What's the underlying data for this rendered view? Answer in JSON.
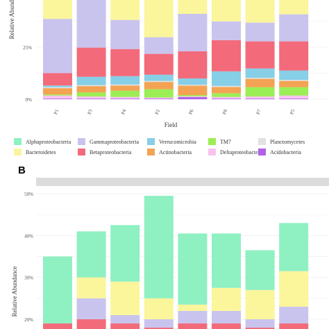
{
  "colors": {
    "Alphaproteobacteria": "#8ff0c2",
    "Gammaproteobacteria": "#c9c4ee",
    "Verrucomicrobia": "#87cfe6",
    "TM7": "#9bee55",
    "Planctomycetes": "#e2e2e2",
    "Bacteroidetes": "#fbf59c",
    "Betaproteobacteria": "#f36a7a",
    "Actinobacteria": "#f3a353",
    "Deltaproteobacteria": "#f8c2ef",
    "Acidobacteria": "#b060ea"
  },
  "chart_data": [
    {
      "type": "bar",
      "stacked": true,
      "ylabel": "Relative Abundance",
      "xlabel": "Field",
      "y_ticks": [
        "0%",
        "25%"
      ],
      "ylim_visible_percent": [
        0,
        52
      ],
      "categories": [
        "P1",
        "P3",
        "P4",
        "P2",
        "P6",
        "P8",
        "P7",
        "P5"
      ],
      "series": [
        {
          "name": "Acidobacteria",
          "values": [
            0.3,
            0.3,
            0.3,
            0.3,
            1.0,
            0.3,
            0.3,
            0.3
          ]
        },
        {
          "name": "Deltaproteobacteria",
          "values": [
            1.5,
            1.0,
            0.8,
            0.5,
            0.4,
            0.8,
            1.0,
            1.5
          ]
        },
        {
          "name": "TM7",
          "values": [
            0.5,
            2.0,
            3.0,
            4.0,
            0.6,
            1.8,
            4.5,
            4.0
          ]
        },
        {
          "name": "Actinobacteria",
          "values": [
            3.0,
            3.0,
            2.5,
            3.5,
            4.5,
            3.0,
            4.0,
            3.0
          ]
        },
        {
          "name": "Planctomycetes",
          "values": [
            0.5,
            0.5,
            0.5,
            0.5,
            0.5,
            0.5,
            0.5,
            0.5
          ]
        },
        {
          "name": "Verrucomicrobia",
          "values": [
            0.8,
            4.0,
            4.0,
            3.0,
            3.0,
            7.0,
            4.5,
            4.5
          ]
        },
        {
          "name": "Betaproteobacteria",
          "values": [
            6.0,
            14.0,
            13.0,
            10.0,
            13.0,
            15.0,
            13.0,
            14.0
          ]
        },
        {
          "name": "Gammaproteobacteria",
          "values": [
            26.0,
            27.0,
            14.0,
            8.0,
            18.0,
            9.0,
            9.0,
            13.0
          ]
        },
        {
          "name": "Bacteroidetes",
          "values": [
            13.4,
            0.2,
            13.9,
            22.2,
            11.0,
            13.6,
            15.2,
            11.2
          ]
        }
      ]
    },
    {
      "type": "bar",
      "stacked": true,
      "panel_label": "B",
      "ylabel": "Relative Abundance",
      "y_ticks": [
        "20%",
        "30%",
        "40%",
        "50%"
      ],
      "ylim_visible_percent": [
        19.2,
        53
      ],
      "categories": [
        "",
        "",
        "",
        "",
        "",
        "",
        "",
        ""
      ],
      "series": [
        {
          "name": "Betaproteobacteria",
          "values": [
            19.0,
            20.0,
            19.0,
            18.0,
            19.0,
            19.0,
            18.0,
            19.0
          ]
        },
        {
          "name": "Gammaproteobacteria",
          "values": [
            0.0,
            5.0,
            2.0,
            2.0,
            3.0,
            3.0,
            2.0,
            4.0
          ]
        },
        {
          "name": "Bacteroidetes",
          "values": [
            0.0,
            5.0,
            8.0,
            5.0,
            1.5,
            5.5,
            7.0,
            8.5
          ]
        },
        {
          "name": "Alphaproteobacteria",
          "values": [
            16.0,
            11.0,
            13.5,
            24.5,
            17.0,
            13.0,
            9.5,
            11.5
          ]
        }
      ]
    }
  ],
  "legend": {
    "rows": [
      [
        "Alphaproteobacteria",
        "Gammaproteobacteria",
        "Verrucomicrobia",
        "TM7",
        "Planctomycetes"
      ],
      [
        "Bacteroidetes",
        "Betaproteobacteria",
        "Actinobacteria",
        "Deltaproteobacteria",
        "Acidobacteria"
      ]
    ]
  }
}
